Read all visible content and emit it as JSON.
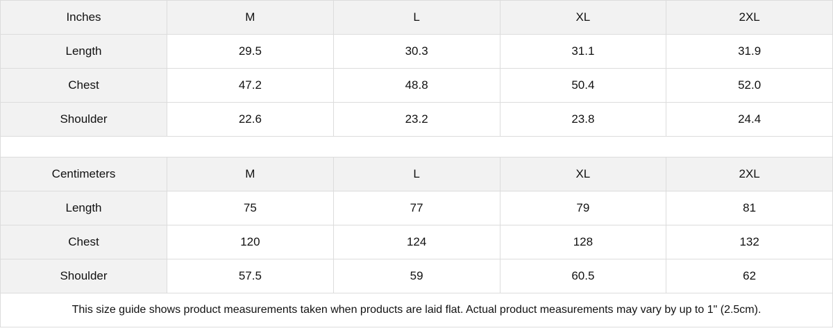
{
  "tables": [
    {
      "unit": "Inches",
      "sizes": [
        "M",
        "L",
        "XL",
        "2XL"
      ],
      "rows": [
        {
          "label": "Length",
          "values": [
            "29.5",
            "30.3",
            "31.1",
            "31.9"
          ]
        },
        {
          "label": "Chest",
          "values": [
            "47.2",
            "48.8",
            "50.4",
            "52.0"
          ]
        },
        {
          "label": "Shoulder",
          "values": [
            "22.6",
            "23.2",
            "23.8",
            "24.4"
          ]
        }
      ]
    },
    {
      "unit": "Centimeters",
      "sizes": [
        "M",
        "L",
        "XL",
        "2XL"
      ],
      "rows": [
        {
          "label": "Length",
          "values": [
            "75",
            "77",
            "79",
            "81"
          ]
        },
        {
          "label": "Chest",
          "values": [
            "120",
            "124",
            "128",
            "132"
          ]
        },
        {
          "label": "Shoulder",
          "values": [
            "57.5",
            "59",
            "60.5",
            "62"
          ]
        }
      ]
    }
  ],
  "footnote": "This size guide shows product measurements taken when products are laid flat.  Actual product measurements may vary by up to 1\" (2.5cm).",
  "colors": {
    "header_bg": "#f2f2f2",
    "border": "#dcdcdc"
  }
}
